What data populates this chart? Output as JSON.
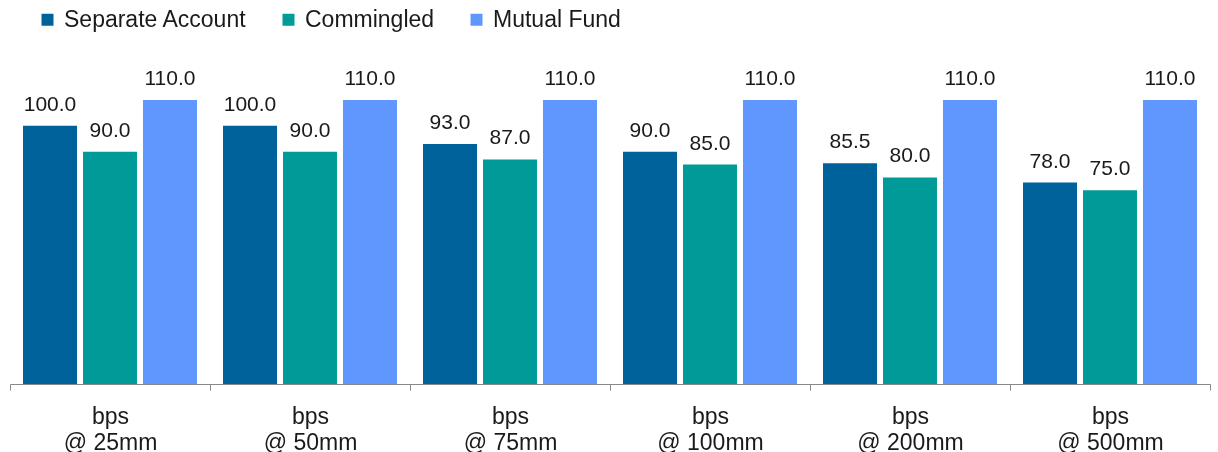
{
  "chart_data": {
    "type": "bar",
    "categories": [
      "bps\n@ 25mm",
      "bps\n@ 50mm",
      "bps\n@ 75mm",
      "bps\n@ 100mm",
      "bps\n@ 200mm",
      "bps\n@ 500mm"
    ],
    "series": [
      {
        "name": "Separate Account",
        "color": "#00629b",
        "values": [
          100.0,
          100.0,
          93.0,
          90.0,
          85.5,
          78.0
        ],
        "value_labels": [
          "100.0",
          "100.0",
          "93.0",
          "90.0",
          "85.5",
          "78.0"
        ]
      },
      {
        "name": "Commingled",
        "color": "#009b98",
        "values": [
          90.0,
          90.0,
          87.0,
          85.0,
          80.0,
          75.0
        ],
        "value_labels": [
          "90.0",
          "90.0",
          "87.0",
          "85.0",
          "80.0",
          "75.0"
        ]
      },
      {
        "name": "Mutual Fund",
        "color": "#6097ff",
        "values": [
          110.0,
          110.0,
          110.0,
          110.0,
          110.0,
          110.0
        ],
        "value_labels": [
          "110.0",
          "110.0",
          "110.0",
          "110.0",
          "110.0",
          "110.0"
        ]
      }
    ],
    "legend": "top left",
    "tick_labels": "x"
  }
}
